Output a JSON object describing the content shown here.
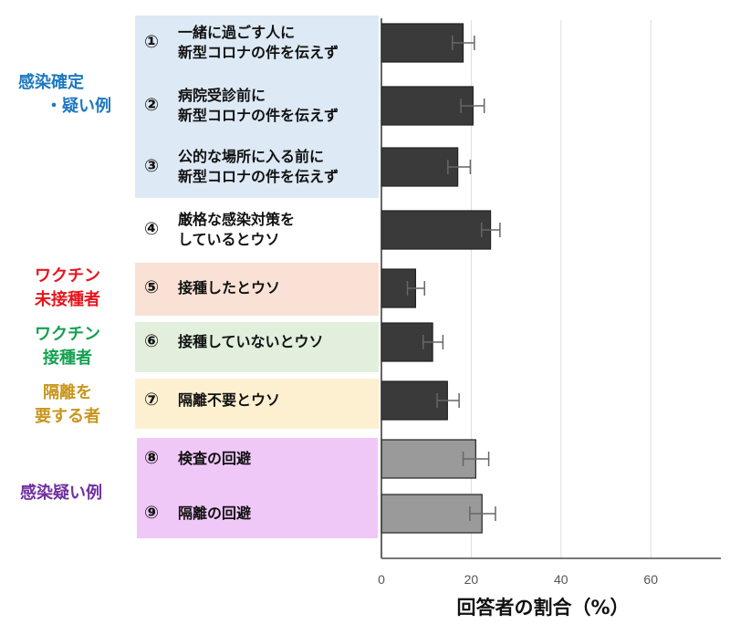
{
  "chart_data": {
    "type": "bar",
    "orientation": "horizontal",
    "xlabel": "回答者の割合（%）",
    "xlim": [
      0,
      75
    ],
    "xticks": [
      "0",
      "20",
      "40",
      "60"
    ],
    "grid": true,
    "categories": [
      {
        "num": "①",
        "lines": [
          "一緒に過ごす人に",
          "新型コロナの件を伝えず"
        ]
      },
      {
        "num": "②",
        "lines": [
          "病院受診前に",
          "新型コロナの件を伝えず"
        ]
      },
      {
        "num": "③",
        "lines": [
          "公的な場所に入る前に",
          "新型コロナの件を伝えず"
        ]
      },
      {
        "num": "④",
        "lines": [
          "厳格な感染対策を",
          "しているとウソ"
        ]
      },
      {
        "num": "⑤",
        "lines": [
          "接種したとウソ"
        ]
      },
      {
        "num": "⑥",
        "lines": [
          "接種していないとウソ"
        ]
      },
      {
        "num": "⑦",
        "lines": [
          "隔離不要とウソ"
        ]
      },
      {
        "num": "⑧",
        "lines": [
          "検査の回避"
        ]
      },
      {
        "num": "⑨",
        "lines": [
          "隔離の回避"
        ]
      }
    ],
    "values": [
      18.2,
      20.4,
      17.0,
      24.3,
      7.6,
      11.4,
      14.7,
      21.0,
      22.4
    ],
    "error_low": [
      15.8,
      17.7,
      14.8,
      22.3,
      5.8,
      9.3,
      12.4,
      18.2,
      19.7
    ],
    "error_high": [
      20.7,
      22.9,
      19.8,
      26.4,
      9.6,
      13.7,
      17.3,
      23.9,
      25.4
    ],
    "bar_colors": [
      "#3a3a3a",
      "#3a3a3a",
      "#3a3a3a",
      "#3a3a3a",
      "#3a3a3a",
      "#3a3a3a",
      "#3a3a3a",
      "#9a9a9a",
      "#9a9a9a"
    ],
    "groups": [
      {
        "lines": [
          "感染確定",
          "・疑い例"
        ],
        "color": "#1e78c0",
        "bg": "#dde9f5",
        "items": [
          1,
          2,
          3
        ]
      },
      {
        "lines": [
          "ワクチン",
          "未接種者"
        ],
        "color": "#e8141c",
        "bg": "#f9e1d6",
        "items": [
          5
        ]
      },
      {
        "lines": [
          "ワクチン",
          "接種者"
        ],
        "color": "#14a050",
        "bg": "#e1efdc",
        "items": [
          6
        ]
      },
      {
        "lines": [
          "隔離を",
          "要する者"
        ],
        "color": "#c8961e",
        "bg": "#fdf0d0",
        "items": [
          7
        ]
      },
      {
        "lines": [
          "感染疑い例"
        ],
        "color": "#7030a0",
        "bg": "#f0c8f8",
        "items": [
          8,
          9
        ]
      }
    ]
  }
}
